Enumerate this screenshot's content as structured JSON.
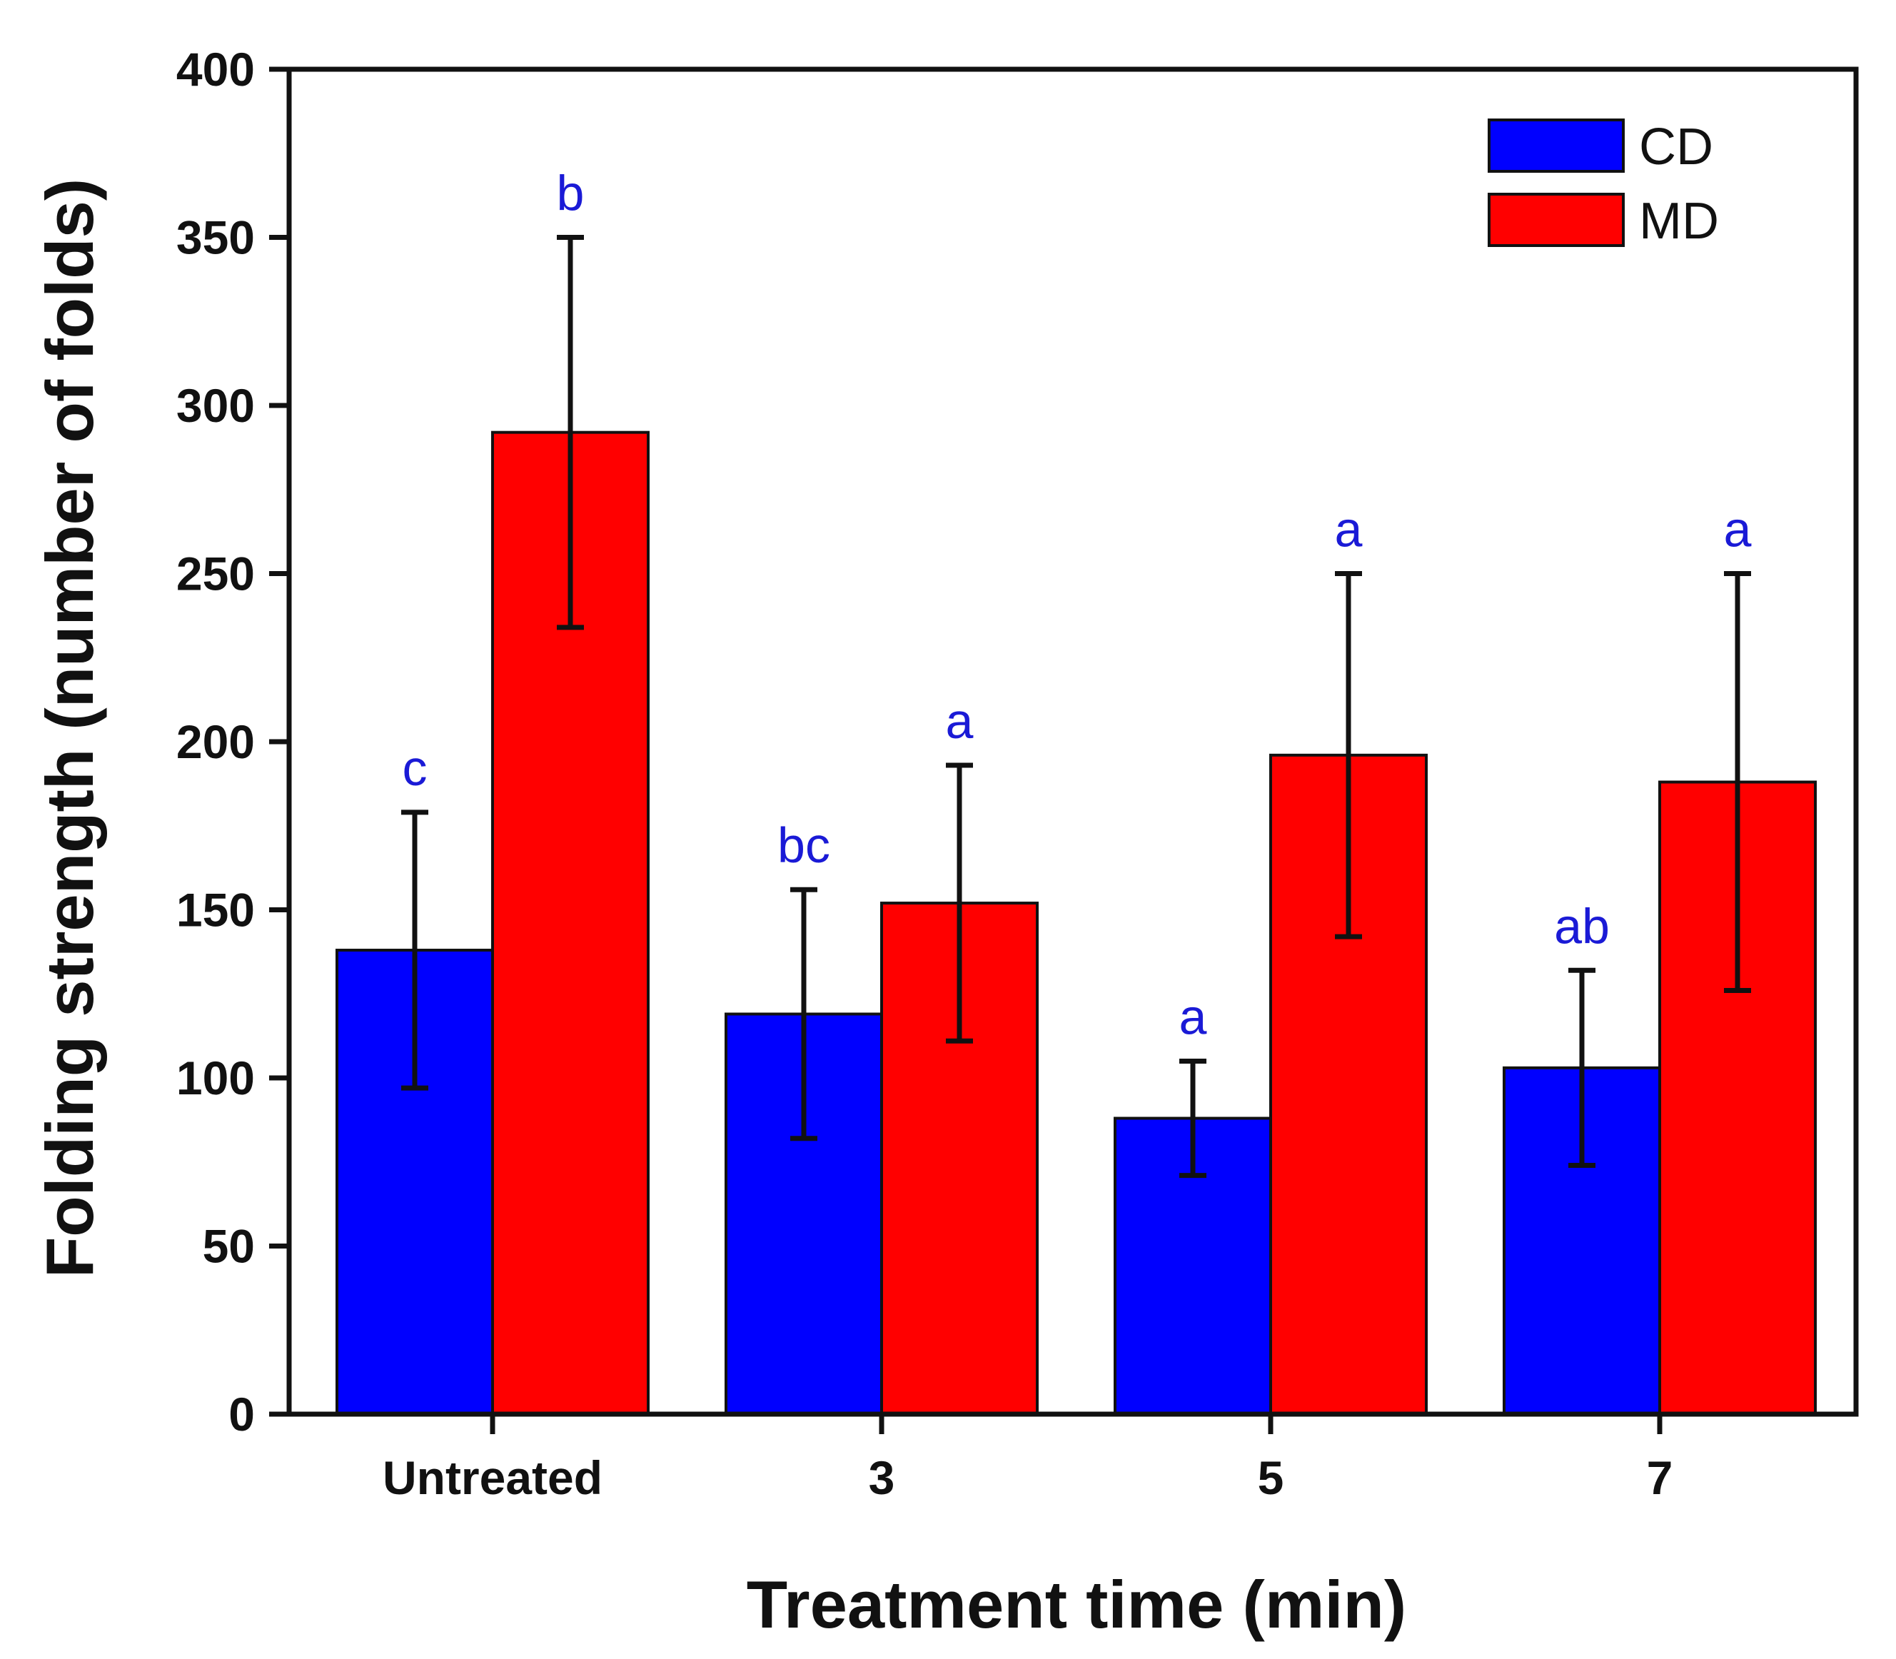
{
  "colors": {
    "cd": "#0000ff",
    "md": "#ff0000",
    "sig": "#1a1ad6",
    "axis": "#111111"
  },
  "chart_data": {
    "type": "bar",
    "title": "",
    "xlabel": "Treatment time (min)",
    "ylabel": "Folding strength (number of folds)",
    "ylim": [
      0,
      400
    ],
    "yticks": [
      0,
      50,
      100,
      150,
      200,
      250,
      300,
      350,
      400
    ],
    "yticklabels": [
      "0",
      "50",
      "100",
      "150",
      "200",
      "250",
      "300",
      "350",
      "400"
    ],
    "categories": [
      "Untreated",
      "3",
      "5",
      "7"
    ],
    "legend_position": "top-right",
    "series": [
      {
        "name": "CD",
        "values": [
          138,
          119,
          88,
          103
        ],
        "errors": [
          41,
          37,
          17,
          29
        ],
        "labels": [
          "c",
          "bc",
          "a",
          "ab"
        ]
      },
      {
        "name": "MD",
        "values": [
          292,
          152,
          196,
          188
        ],
        "errors": [
          58,
          41,
          54,
          62
        ],
        "labels": [
          "b",
          "a",
          "a",
          "a"
        ]
      }
    ]
  }
}
